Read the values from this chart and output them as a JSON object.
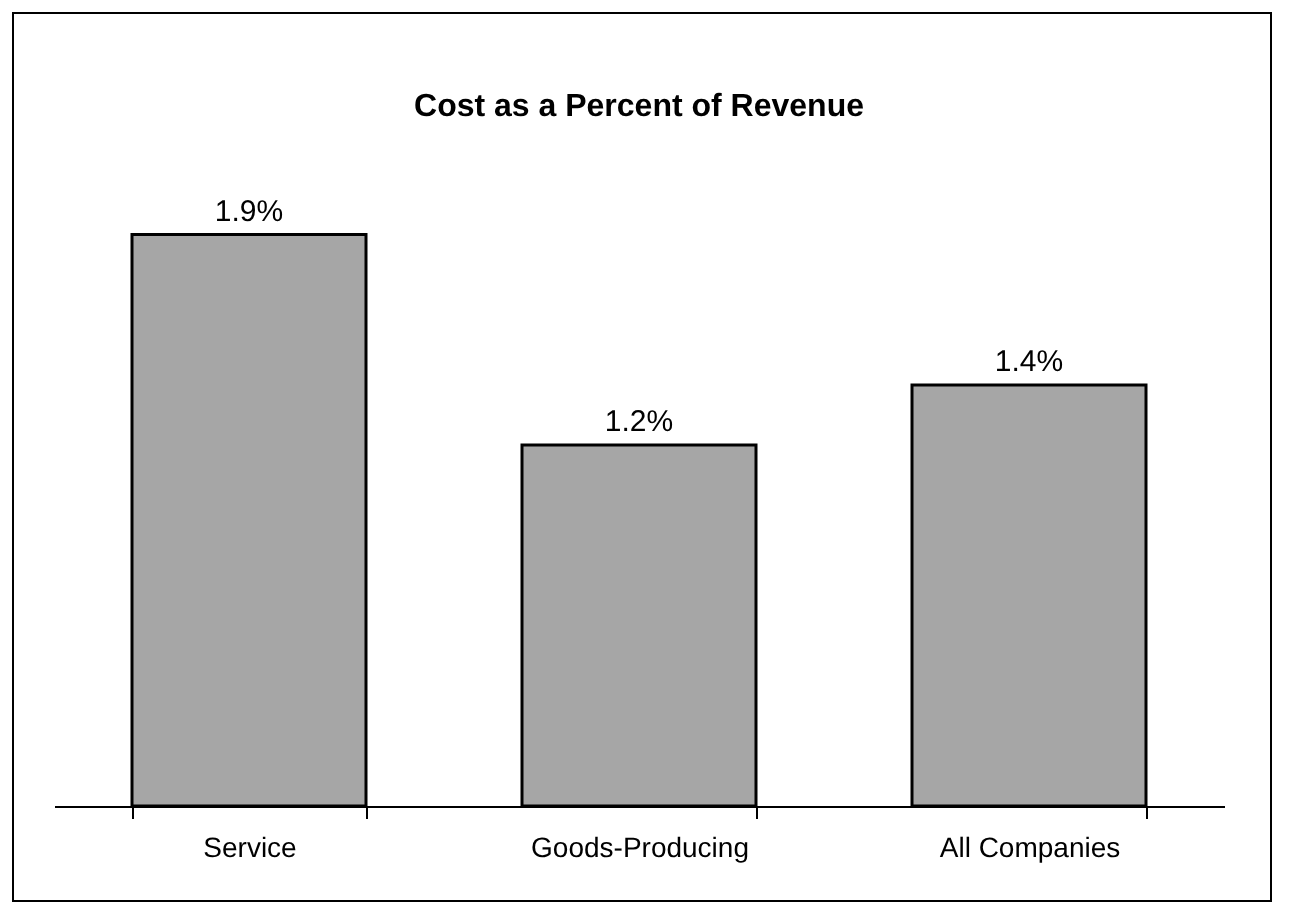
{
  "chart_data": {
    "type": "bar",
    "title": "Cost as a Percent of Revenue",
    "categories": [
      "Service",
      "Goods-Producing",
      "All Companies"
    ],
    "values": [
      1.9,
      1.2,
      1.4
    ],
    "value_labels": [
      "1.9%",
      "1.2%",
      "1.4%"
    ],
    "color": "#a6a6a6"
  }
}
